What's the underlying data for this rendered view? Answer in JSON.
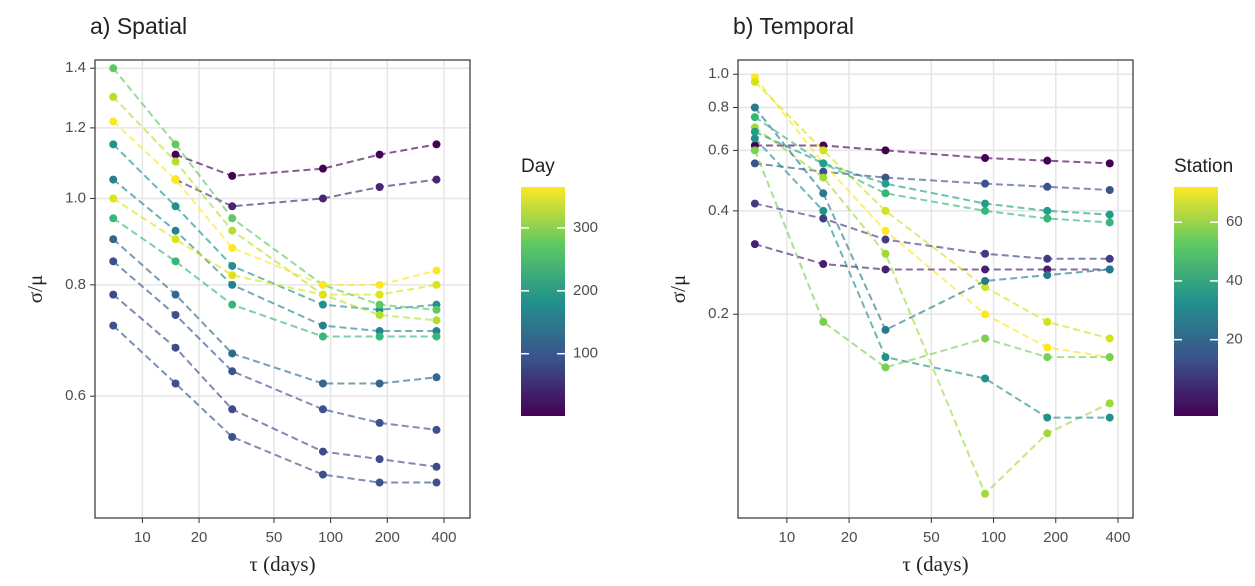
{
  "chart_data": [
    {
      "type": "line",
      "title": "a) Spatial",
      "x_label": "τ (days)",
      "y_label": "σ/μ",
      "x": [
        7,
        15,
        30,
        91,
        182,
        365
      ],
      "log_x": true,
      "log_y": true,
      "grid": true,
      "xlim": [
        5.6,
        550
      ],
      "ylim": [
        0.438,
        1.43
      ],
      "xticks": [
        10,
        20,
        50,
        100,
        200,
        400
      ],
      "yticks": [
        0.6,
        0.8,
        {
          "value": 1.0,
          "label": "1.0"
        },
        1.2,
        1.4
      ],
      "series": [
        {
          "color": "#3b528b",
          "values": [
            0.72,
            0.62,
            0.54,
            0.49,
            0.48,
            0.48
          ]
        },
        {
          "color": "#3e4a89",
          "values": [
            0.78,
            0.68,
            0.58,
            0.52,
            0.51,
            0.5
          ]
        },
        {
          "color": "#3b528b",
          "values": [
            0.85,
            0.74,
            0.64,
            0.58,
            0.56,
            0.55
          ]
        },
        {
          "color": "#31688e",
          "values": [
            0.9,
            0.78,
            0.67,
            0.62,
            0.62,
            0.63
          ]
        },
        {
          "color": "#440154",
          "values": [
            null,
            1.12,
            1.06,
            1.08,
            1.12,
            1.15
          ]
        },
        {
          "color": "#482475",
          "values": [
            null,
            1.05,
            0.98,
            1.0,
            1.03,
            1.05
          ]
        },
        {
          "color": "#26828e",
          "values": [
            1.05,
            0.92,
            0.8,
            0.72,
            0.71,
            0.71
          ]
        },
        {
          "color": "#21918c",
          "values": [
            1.15,
            0.98,
            0.84,
            0.76,
            0.75,
            0.76
          ]
        },
        {
          "color": "#35b779",
          "values": [
            0.95,
            0.85,
            0.76,
            0.7,
            0.7,
            0.7
          ]
        },
        {
          "color": "#5ec962",
          "values": [
            1.4,
            1.15,
            0.95,
            0.8,
            0.76,
            0.75
          ]
        },
        {
          "color": "#b5de2b",
          "values": [
            1.3,
            1.1,
            0.92,
            0.78,
            0.74,
            0.73
          ]
        },
        {
          "color": "#dce319",
          "values": [
            1.0,
            0.9,
            0.82,
            0.78,
            0.78,
            0.8
          ]
        },
        {
          "color": "#fde725",
          "values": [
            1.22,
            1.05,
            0.88,
            0.8,
            0.8,
            0.83
          ]
        }
      ],
      "colorbar": {
        "title": "Day",
        "lim": [
          1,
          365
        ],
        "ticks": [
          100,
          200,
          300
        ],
        "colors": [
          "#440154",
          "#3b528b",
          "#21918c",
          "#5ec962",
          "#fde725"
        ]
      }
    },
    {
      "type": "line",
      "title": "b) Temporal",
      "x_label": "τ (days)",
      "y_label": "σ/μ",
      "x": [
        7,
        15,
        30,
        91,
        182,
        365
      ],
      "log_x": true,
      "log_y": true,
      "grid": true,
      "xlim": [
        5.8,
        473
      ],
      "ylim": [
        0.051,
        1.1
      ],
      "xticks": [
        10,
        20,
        50,
        100,
        200,
        400
      ],
      "yticks": [
        0.2,
        0.4,
        0.6,
        0.8,
        {
          "value": 1.0,
          "label": "1.0"
        }
      ],
      "series": [
        {
          "color": "#440154",
          "values": [
            0.62,
            0.62,
            0.6,
            0.57,
            0.56,
            0.55
          ]
        },
        {
          "color": "#3b528b",
          "values": [
            0.55,
            0.52,
            0.5,
            0.48,
            0.47,
            0.46
          ]
        },
        {
          "color": "#481f70",
          "values": [
            0.32,
            0.28,
            0.27,
            0.27,
            0.27,
            0.27
          ]
        },
        {
          "color": "#443983",
          "values": [
            0.42,
            0.38,
            0.33,
            0.3,
            0.29,
            0.29
          ]
        },
        {
          "color": "#fde725",
          "values": [
            0.98,
            0.55,
            0.35,
            0.2,
            0.16,
            0.15
          ]
        },
        {
          "color": "#d2e21b",
          "values": [
            0.95,
            0.6,
            0.4,
            0.24,
            0.19,
            0.17
          ]
        },
        {
          "color": "#a0da39",
          "values": [
            0.7,
            0.5,
            0.3,
            0.06,
            0.09,
            0.11
          ]
        },
        {
          "color": "#21918c",
          "values": [
            0.65,
            0.4,
            0.15,
            0.13,
            0.1,
            0.1
          ]
        },
        {
          "color": "#2a788e",
          "values": [
            0.8,
            0.45,
            0.18,
            0.25,
            0.26,
            0.27
          ]
        },
        {
          "color": "#7ad151",
          "values": [
            0.6,
            0.19,
            0.14,
            0.17,
            0.15,
            0.15
          ]
        },
        {
          "color": "#35b779",
          "values": [
            0.75,
            0.55,
            0.45,
            0.4,
            0.38,
            0.37
          ]
        },
        {
          "color": "#1f9e89",
          "values": [
            0.68,
            0.55,
            0.48,
            0.42,
            0.4,
            0.39
          ]
        }
      ],
      "colorbar": {
        "title": "Station",
        "lim": [
          -6,
          72
        ],
        "ticks": [
          20,
          40,
          60
        ],
        "colors": [
          "#440154",
          "#3b528b",
          "#21918c",
          "#5ec962",
          "#fde725"
        ]
      }
    }
  ]
}
